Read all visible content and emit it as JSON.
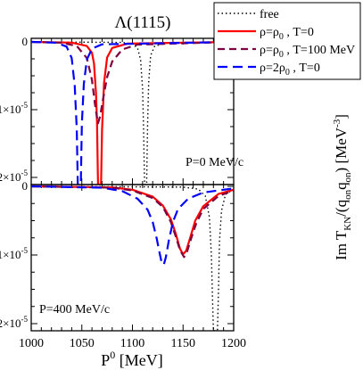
{
  "chart_data": [
    {
      "type": "line",
      "title": "Λ(1115)",
      "annotation": "P=0 MeV/c",
      "xlim": [
        1000,
        1200
      ],
      "ylim": [
        -22000,
        0
      ],
      "y_unit_scale": 1e-09,
      "ytick_labels": [
        {
          "value": 0,
          "label": "0"
        },
        {
          "value": -10000,
          "label": "-1×10",
          "exp": "-5"
        },
        {
          "value": -20000,
          "label": "-2×10",
          "exp": "-5"
        }
      ],
      "series": [
        {
          "name": "free",
          "color": "#000000",
          "dash": "1.5,3",
          "width": 1.4,
          "points": [
            [
              1000,
              0
            ],
            [
              1090,
              -80
            ],
            [
              1100,
              -300
            ],
            [
              1105,
              -900
            ],
            [
              1108,
              -2600
            ],
            [
              1110,
              -7000
            ],
            [
              1111,
              -13000
            ],
            [
              1112,
              -22000
            ],
            [
              1114,
              -22000
            ],
            [
              1115,
              -12000
            ],
            [
              1116,
              -6000
            ],
            [
              1118,
              -2000
            ],
            [
              1122,
              -600
            ],
            [
              1135,
              -150
            ],
            [
              1200,
              0
            ]
          ]
        },
        {
          "name": "ρ=ρ",
          "sub": "0",
          "suffix": " , T=0",
          "color": "#ff0000",
          "dash": "",
          "width": 2.2,
          "points": [
            [
              1000,
              0
            ],
            [
              1040,
              -100
            ],
            [
              1055,
              -600
            ],
            [
              1060,
              -1600
            ],
            [
              1062,
              -3200
            ],
            [
              1064,
              -7500
            ],
            [
              1065,
              -12000
            ],
            [
              1066,
              -22000
            ],
            [
              1069,
              -22000
            ],
            [
              1070,
              -13000
            ],
            [
              1072,
              -6000
            ],
            [
              1075,
              -2300
            ],
            [
              1080,
              -900
            ],
            [
              1095,
              -250
            ],
            [
              1200,
              0
            ]
          ]
        },
        {
          "name": "ρ=ρ",
          "sub": "0",
          "suffix": " , T=100 MeV",
          "color": "#800040",
          "dash": "8,5",
          "width": 2.2,
          "points": [
            [
              1000,
              0
            ],
            [
              1030,
              -120
            ],
            [
              1045,
              -600
            ],
            [
              1055,
              -2400
            ],
            [
              1060,
              -5600
            ],
            [
              1063,
              -9200
            ],
            [
              1065,
              -11200
            ],
            [
              1066,
              -12000
            ],
            [
              1068,
              -11000
            ],
            [
              1071,
              -8400
            ],
            [
              1075,
              -5200
            ],
            [
              1080,
              -2900
            ],
            [
              1090,
              -1100
            ],
            [
              1105,
              -400
            ],
            [
              1200,
              0
            ]
          ]
        },
        {
          "name": "ρ=2ρ",
          "sub": "0",
          "suffix": " , T=0",
          "color": "#0000ff",
          "dash": "11,6",
          "width": 2.2,
          "points": [
            [
              1000,
              0
            ],
            [
              1025,
              -120
            ],
            [
              1035,
              -700
            ],
            [
              1040,
              -2400
            ],
            [
              1043,
              -6500
            ],
            [
              1045,
              -13000
            ],
            [
              1046,
              -22000
            ],
            [
              1049,
              -22000
            ],
            [
              1050,
              -12000
            ],
            [
              1052,
              -6200
            ],
            [
              1055,
              -2600
            ],
            [
              1060,
              -1000
            ],
            [
              1070,
              -350
            ],
            [
              1200,
              0
            ]
          ]
        }
      ]
    },
    {
      "type": "line",
      "annotation": "P=400 MeV/c",
      "xlabel": "P",
      "xlabel_sup": "0",
      "xlabel_unit": " [MeV]",
      "xlim": [
        1000,
        1200
      ],
      "ylim": [
        -22000,
        0
      ],
      "x": [
        1000,
        1050,
        1100,
        1150,
        1200
      ],
      "xtick_labels": [
        "1000",
        "1050",
        "1100",
        "1150",
        "1200"
      ],
      "ytick_labels": [
        {
          "value": 0,
          "label": "0"
        },
        {
          "value": -10000,
          "label": "-1×10",
          "exp": "-5"
        },
        {
          "value": -20000,
          "label": "-2×10",
          "exp": "-5"
        }
      ],
      "series": [
        {
          "name": "free",
          "color": "#000000",
          "dash": "1.5,3",
          "width": 1.4,
          "points": [
            [
              1000,
              0
            ],
            [
              1150,
              -100
            ],
            [
              1165,
              -400
            ],
            [
              1172,
              -1400
            ],
            [
              1176,
              -4500
            ],
            [
              1178,
              -10000
            ],
            [
              1179,
              -16000
            ],
            [
              1180,
              -22000
            ],
            [
              1182,
              -22000
            ],
            [
              1184,
              -22000
            ],
            [
              1185,
              -15000
            ],
            [
              1186,
              -8000
            ],
            [
              1188,
              -3500
            ],
            [
              1192,
              -1200
            ],
            [
              1200,
              -400
            ]
          ]
        },
        {
          "name": "ρ=ρ",
          "sub": "0",
          "suffix": " , T=0",
          "color": "#ff0000",
          "dash": "",
          "width": 2.2,
          "points": [
            [
              1000,
              0
            ],
            [
              1080,
              -150
            ],
            [
              1100,
              -500
            ],
            [
              1120,
              -1500
            ],
            [
              1130,
              -2800
            ],
            [
              1138,
              -4800
            ],
            [
              1143,
              -7000
            ],
            [
              1147,
              -9100
            ],
            [
              1150,
              -9900
            ],
            [
              1153,
              -9400
            ],
            [
              1157,
              -7500
            ],
            [
              1162,
              -5000
            ],
            [
              1170,
              -2900
            ],
            [
              1185,
              -1100
            ],
            [
              1200,
              -500
            ]
          ]
        },
        {
          "name": "ρ=ρ",
          "sub": "0",
          "suffix": " , T=100 MeV",
          "color": "#800040",
          "dash": "8,5",
          "width": 2.2,
          "points": [
            [
              1000,
              0
            ],
            [
              1080,
              -200
            ],
            [
              1100,
              -600
            ],
            [
              1120,
              -1700
            ],
            [
              1130,
              -3000
            ],
            [
              1138,
              -5200
            ],
            [
              1143,
              -7400
            ],
            [
              1147,
              -9300
            ],
            [
              1151,
              -10300
            ],
            [
              1154,
              -9500
            ],
            [
              1158,
              -7600
            ],
            [
              1163,
              -5400
            ],
            [
              1170,
              -3300
            ],
            [
              1185,
              -1400
            ],
            [
              1200,
              -600
            ]
          ]
        },
        {
          "name": "ρ=2ρ",
          "sub": "0",
          "suffix": " , T=0",
          "color": "#0000ff",
          "dash": "11,6",
          "width": 2.2,
          "points": [
            [
              1000,
              0
            ],
            [
              1070,
              -200
            ],
            [
              1090,
              -700
            ],
            [
              1105,
              -1800
            ],
            [
              1115,
              -3400
            ],
            [
              1120,
              -5200
            ],
            [
              1124,
              -7600
            ],
            [
              1127,
              -9800
            ],
            [
              1129,
              -11200
            ],
            [
              1131,
              -11400
            ],
            [
              1133,
              -10300
            ],
            [
              1136,
              -7800
            ],
            [
              1140,
              -5200
            ],
            [
              1145,
              -3300
            ],
            [
              1155,
              -1800
            ],
            [
              1170,
              -900
            ],
            [
              1200,
              -300
            ]
          ]
        }
      ]
    }
  ],
  "ylabel": {
    "text": "Im T",
    "sub1": "KN",
    "mid": "/(q",
    "sub2": "on",
    "mid2": "q",
    "sub3": "on",
    "end": ") [MeV",
    "sup": "-3",
    "close": "]"
  }
}
